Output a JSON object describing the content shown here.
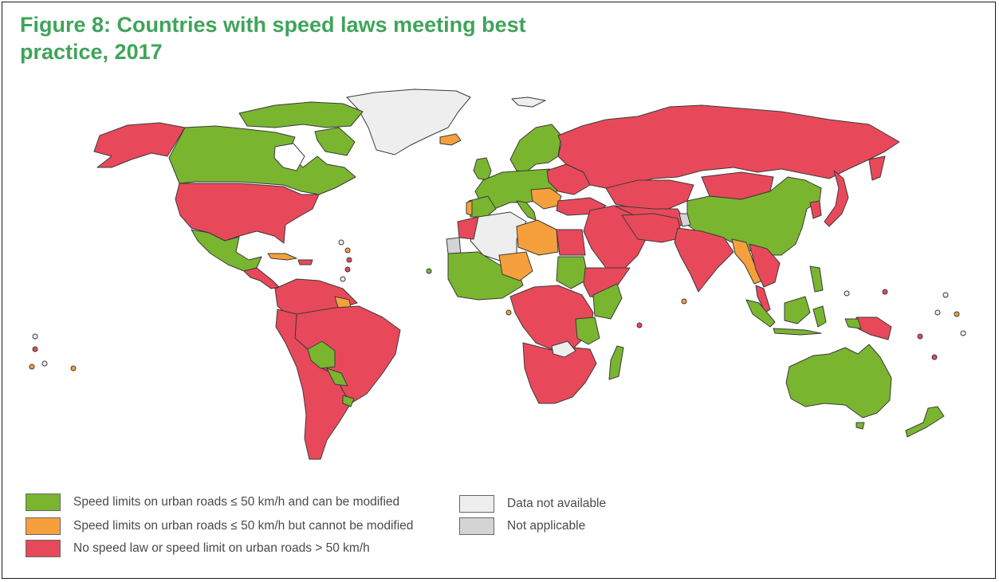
{
  "figure": {
    "title": "Figure 8: Countries with speed laws meeting best practice, 2017"
  },
  "colors": {
    "green": "#7ab530",
    "orange": "#f5a03c",
    "red": "#e8495a",
    "no_data": "#eeeeee",
    "not_applicable": "#d4d4d4",
    "title": "#3fa45a",
    "border": "#3a3a3a"
  },
  "legend": {
    "items": [
      {
        "label": "Speed limits on urban roads ≤ 50 km/h and can be modified",
        "color": "#7ab530"
      },
      {
        "label": "Speed limits on urban roads ≤ 50 km/h but cannot be modified",
        "color": "#f5a03c"
      },
      {
        "label": "No speed law or speed limit on urban roads > 50 km/h",
        "color": "#e8495a"
      },
      {
        "label": "Data not available",
        "color": "#eeeeee"
      },
      {
        "label": "Not applicable",
        "color": "#d4d4d4"
      }
    ]
  }
}
